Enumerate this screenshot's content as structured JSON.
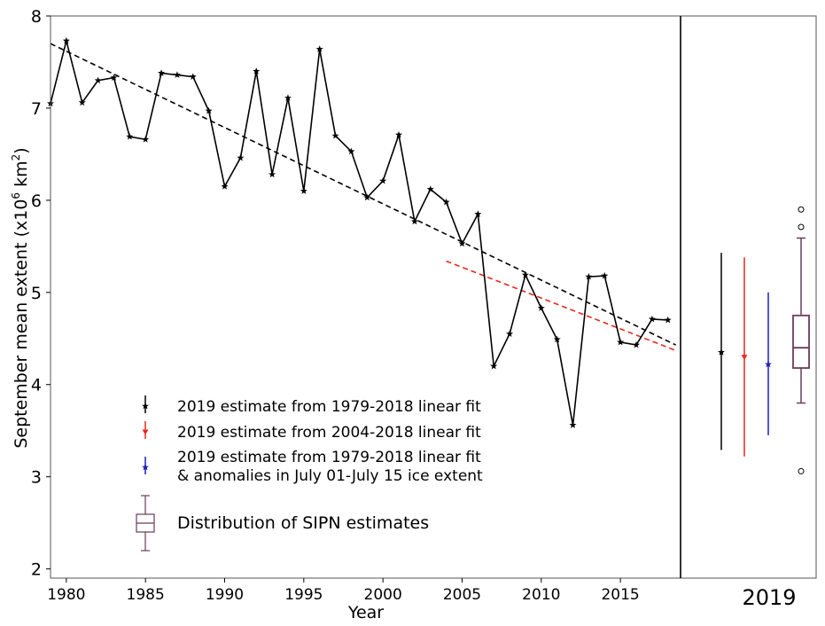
{
  "chart_data": {
    "type": "line",
    "xlabel": "Year",
    "ylabel": "September mean extent (x10",
    "ylabel_sup": "6",
    "ylabel_unit": " km",
    "ylabel_sup2": "2",
    "ylabel_close": ")",
    "xlim": [
      1979,
      2018.8
    ],
    "ylim": [
      1.9,
      8.0
    ],
    "xticks": [
      1980,
      1985,
      1990,
      1995,
      2000,
      2005,
      2010,
      2015
    ],
    "yticks": [
      2,
      3,
      4,
      5,
      6,
      7,
      8
    ],
    "side_panel_label": "2019",
    "series": {
      "x": [
        1979,
        1980,
        1981,
        1982,
        1983,
        1984,
        1985,
        1986,
        1987,
        1988,
        1989,
        1990,
        1991,
        1992,
        1993,
        1994,
        1995,
        1996,
        1997,
        1998,
        1999,
        2000,
        2001,
        2002,
        2003,
        2004,
        2005,
        2006,
        2007,
        2008,
        2009,
        2010,
        2011,
        2012,
        2013,
        2014,
        2015,
        2016,
        2017,
        2018
      ],
      "y": [
        7.05,
        7.73,
        7.06,
        7.3,
        7.33,
        6.69,
        6.66,
        7.38,
        7.36,
        7.34,
        6.97,
        6.15,
        6.46,
        7.4,
        6.28,
        7.11,
        6.1,
        7.64,
        6.7,
        6.53,
        6.03,
        6.21,
        6.71,
        5.77,
        6.12,
        5.98,
        5.53,
        5.85,
        4.2,
        4.55,
        5.19,
        4.83,
        4.49,
        3.56,
        5.17,
        5.18,
        4.46,
        4.43,
        4.71,
        4.7
      ],
      "color": "#000000"
    },
    "fits": [
      {
        "x": [
          1979,
          2018.5
        ],
        "y": [
          7.7,
          4.43
        ],
        "color": "#000000"
      },
      {
        "x": [
          2004,
          2018.5
        ],
        "y": [
          5.34,
          4.37
        ],
        "color": "#e8291c"
      }
    ],
    "estimates": [
      {
        "label": "2019 estimate from 1979-2018 linear fit",
        "value": 4.35,
        "low": 3.29,
        "high": 5.43,
        "color": "#000000",
        "marker": "star"
      },
      {
        "label": "2019 estimate from 2004-2018 linear fit",
        "value": 4.3,
        "low": 3.22,
        "high": 5.38,
        "color": "#e8291c",
        "marker": "triangle"
      },
      {
        "label": "2019 estimate from 1979-2018 linear fit",
        "label2": "& anomalies in July 01-July 15 ice extent",
        "value": 4.22,
        "low": 3.45,
        "high": 5.0,
        "color": "#1f1fbf",
        "marker": "star"
      }
    ],
    "sipn_box": {
      "label": "Distribution of SIPN estimates",
      "whisker_low": 3.8,
      "q1": 4.18,
      "median": 4.4,
      "q3": 4.75,
      "whisker_high": 5.59,
      "outliers": [
        5.9,
        5.71,
        3.06
      ],
      "color": "#6b3a5e"
    }
  }
}
